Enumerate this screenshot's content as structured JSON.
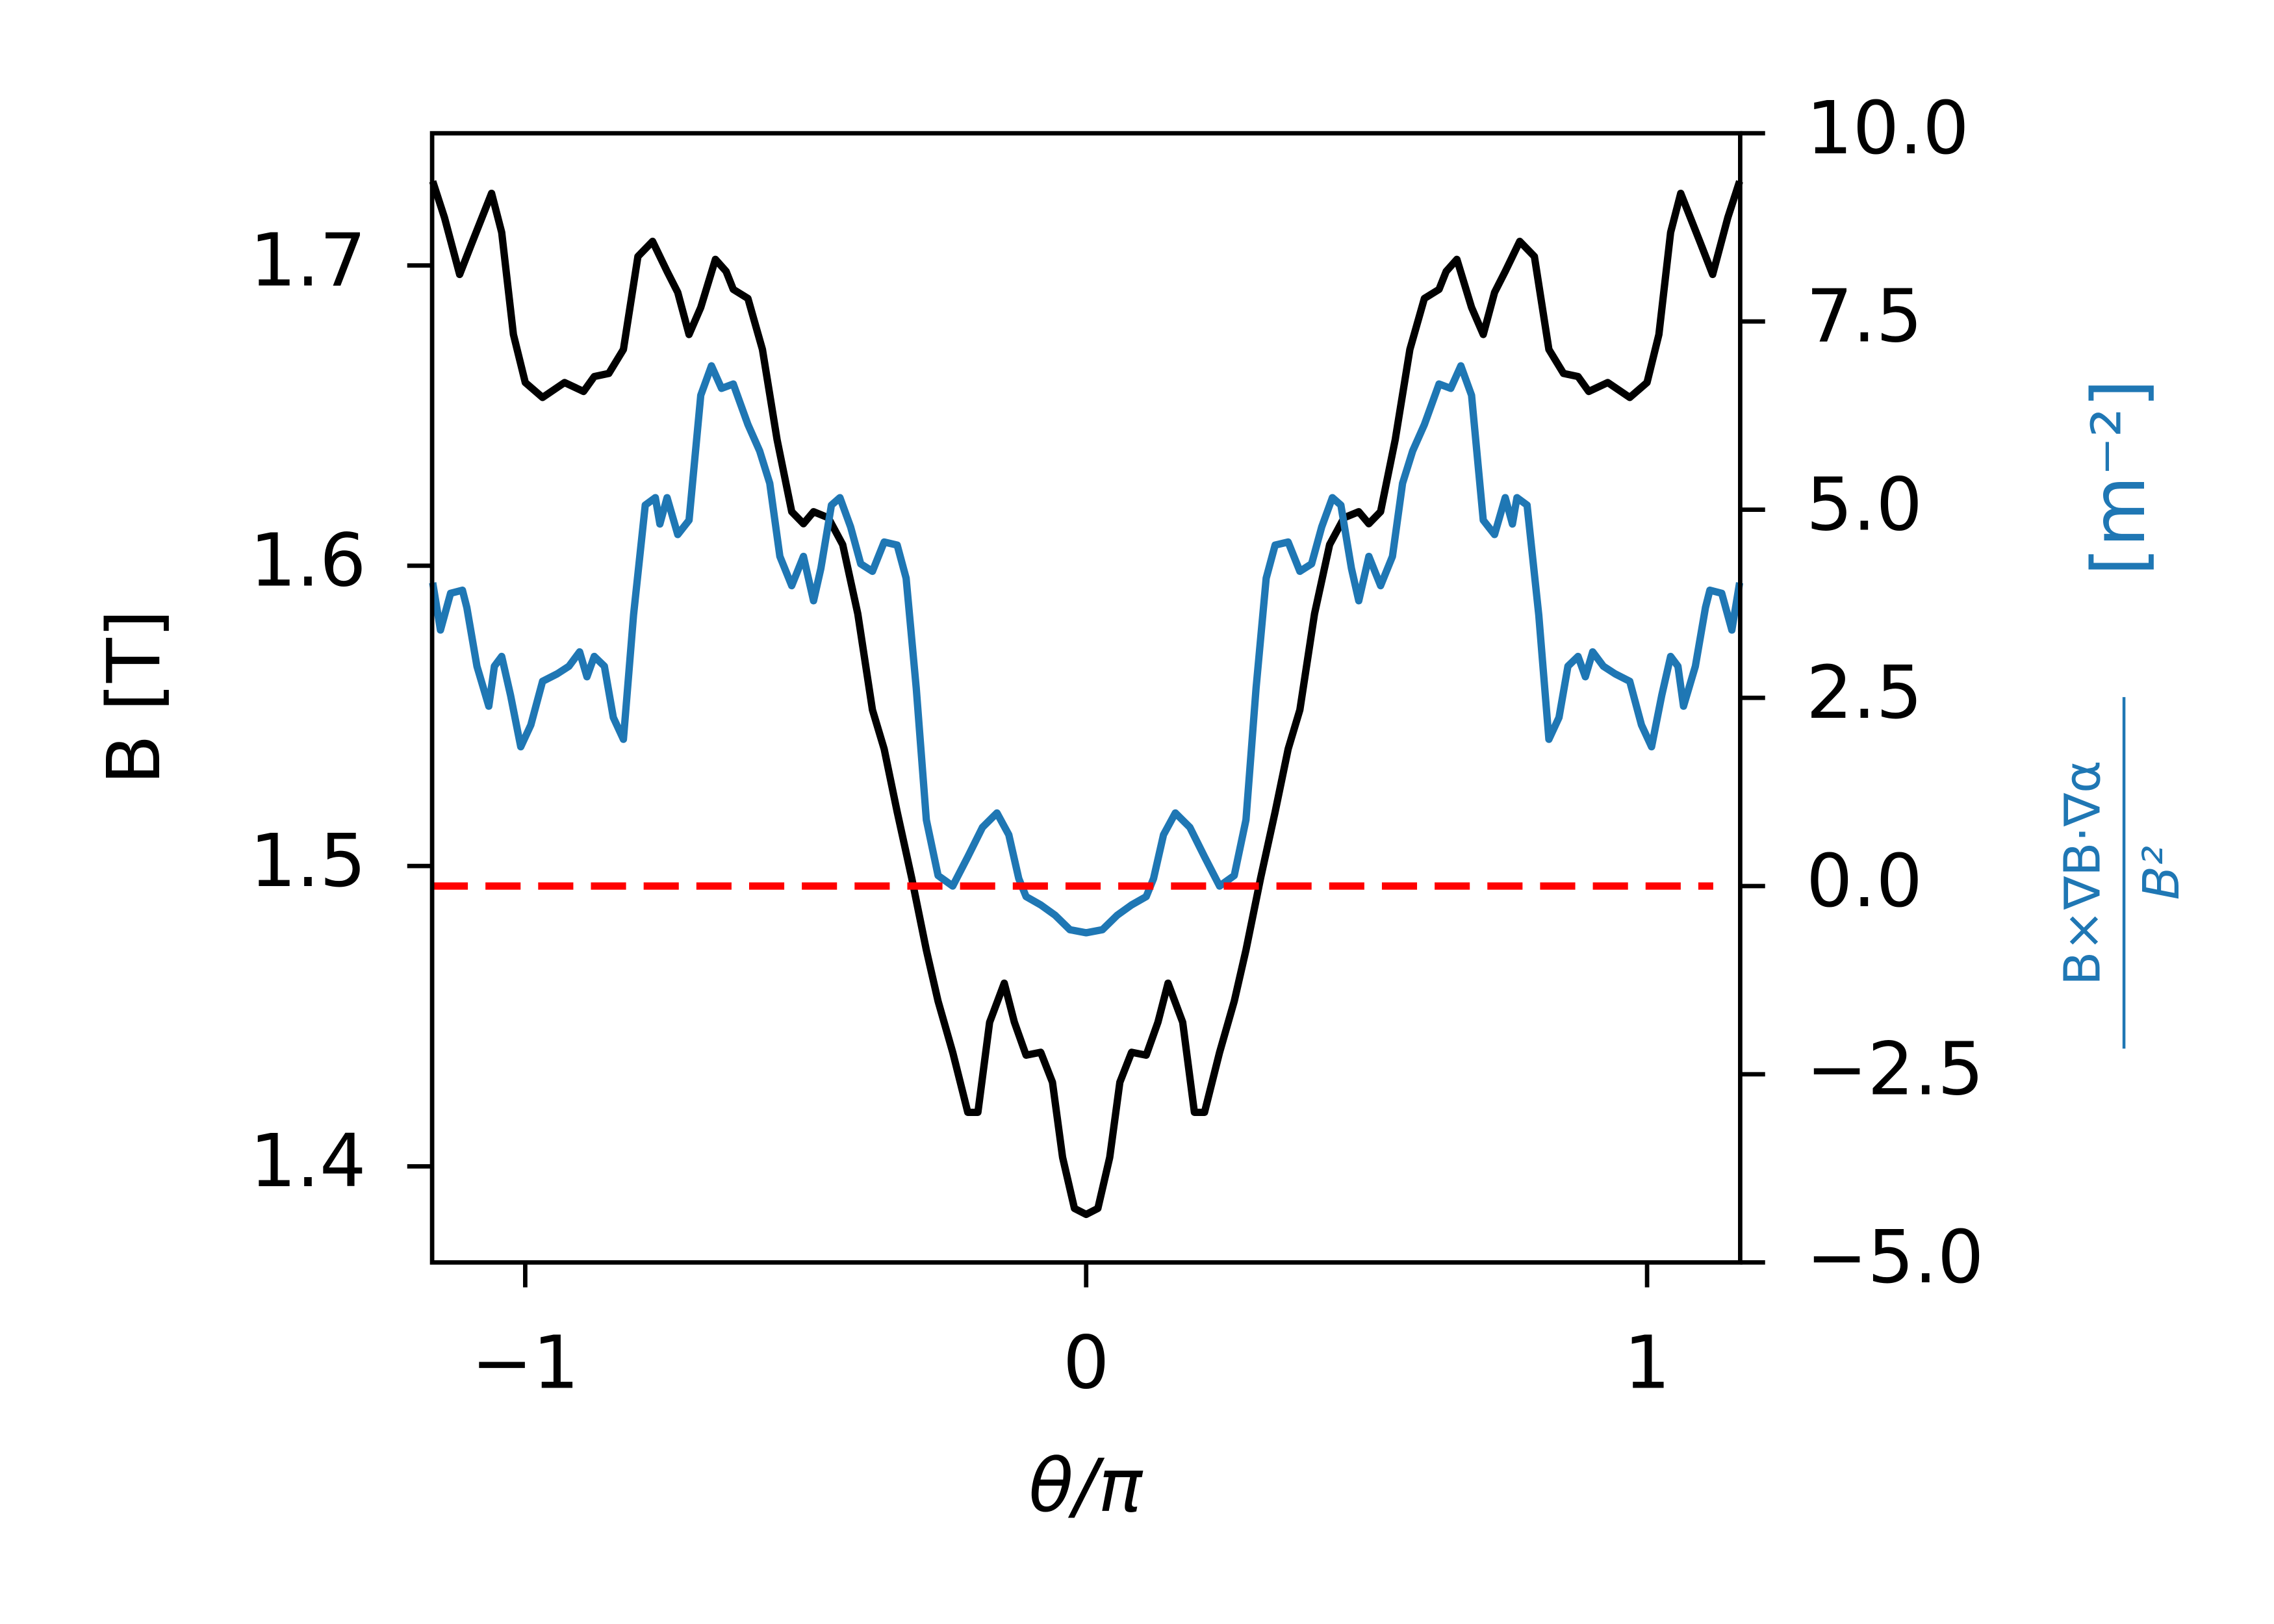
{
  "chart_data": {
    "type": "line",
    "xlabel": "θ/π",
    "ylabel": "B [T]",
    "y2label_numerator": "B×∇B·∇α",
    "y2label_denominator": "B²",
    "y2label_unit": "[m⁻²]",
    "y2label_color": "#1f77b4",
    "xlim": [
      -1.166,
      1.166
    ],
    "xticks": [
      {
        "value": -1,
        "label": "−1"
      },
      0,
      1
    ],
    "ylim": [
      1.368,
      1.744
    ],
    "yticks": [
      1.4,
      1.5,
      1.6,
      1.7
    ],
    "y2lim": [
      -5,
      10
    ],
    "y2ticks": [
      {
        "value": -5,
        "label": "−5.0"
      },
      {
        "value": -2.5,
        "label": "−2.5"
      },
      {
        "value": 0,
        "label": "0.0"
      },
      2.5,
      {
        "value": 5,
        "label": "5.0"
      },
      7.5,
      {
        "value": 10,
        "label": "10.0"
      }
    ],
    "series": [
      {
        "color": "#000000",
        "axis": "y",
        "x": [
          -1.165,
          -1.144,
          -1.117,
          -1.094,
          -1.06,
          -1.042,
          -1.021,
          -1.0,
          -0.969,
          -0.93,
          -0.896,
          -0.877,
          -0.851,
          -0.825,
          -0.799,
          -0.773,
          -0.747,
          -0.728,
          -0.708,
          -0.687,
          -0.661,
          -0.642,
          -0.629,
          -0.603,
          -0.577,
          -0.551,
          -0.525,
          -0.504,
          -0.486,
          -0.46,
          -0.434,
          -0.407,
          -0.381,
          -0.36,
          -0.337,
          -0.311,
          -0.285,
          -0.264,
          -0.238,
          -0.211,
          -0.193,
          -0.172,
          -0.146,
          -0.128,
          -0.107,
          -0.081,
          -0.06,
          -0.042,
          -0.021,
          0,
          0.021,
          0.042,
          0.06,
          0.081,
          0.107,
          0.128,
          0.146,
          0.172,
          0.193,
          0.211,
          0.238,
          0.264,
          0.285,
          0.311,
          0.337,
          0.36,
          0.381,
          0.407,
          0.434,
          0.46,
          0.486,
          0.504,
          0.525,
          0.551,
          0.577,
          0.603,
          0.629,
          0.642,
          0.661,
          0.687,
          0.708,
          0.728,
          0.747,
          0.773,
          0.799,
          0.825,
          0.851,
          0.877,
          0.896,
          0.93,
          0.969,
          1.0,
          1.021,
          1.042,
          1.06,
          1.094,
          1.117,
          1.144,
          1.165
        ],
        "values": [
          1.728,
          1.716,
          1.697,
          1.708,
          1.724,
          1.711,
          1.677,
          1.661,
          1.656,
          1.661,
          1.658,
          1.663,
          1.664,
          1.672,
          1.703,
          1.708,
          1.698,
          1.691,
          1.677,
          1.686,
          1.702,
          1.698,
          1.692,
          1.689,
          1.672,
          1.642,
          1.618,
          1.614,
          1.618,
          1.616,
          1.607,
          1.584,
          1.552,
          1.539,
          1.518,
          1.496,
          1.472,
          1.455,
          1.438,
          1.418,
          1.418,
          1.448,
          1.461,
          1.448,
          1.437,
          1.438,
          1.428,
          1.403,
          1.386,
          1.384,
          1.386,
          1.403,
          1.428,
          1.438,
          1.437,
          1.448,
          1.461,
          1.448,
          1.418,
          1.418,
          1.438,
          1.455,
          1.472,
          1.496,
          1.518,
          1.539,
          1.552,
          1.584,
          1.607,
          1.616,
          1.618,
          1.614,
          1.618,
          1.642,
          1.672,
          1.689,
          1.692,
          1.698,
          1.702,
          1.686,
          1.677,
          1.691,
          1.698,
          1.708,
          1.703,
          1.672,
          1.664,
          1.663,
          1.658,
          1.661,
          1.656,
          1.661,
          1.677,
          1.711,
          1.724,
          1.708,
          1.697,
          1.716,
          1.728
        ]
      },
      {
        "color": "#1f77b4",
        "axis": "y2",
        "x": [
          -1.165,
          -1.151,
          -1.133,
          -1.112,
          -1.104,
          -1.086,
          -1.065,
          -1.055,
          -1.042,
          -1.026,
          -1.008,
          -0.99,
          -0.969,
          -0.943,
          -0.922,
          -0.903,
          -0.89,
          -0.877,
          -0.859,
          -0.843,
          -0.825,
          -0.807,
          -0.786,
          -0.768,
          -0.76,
          -0.747,
          -0.728,
          -0.708,
          -0.687,
          -0.668,
          -0.65,
          -0.629,
          -0.603,
          -0.582,
          -0.564,
          -0.546,
          -0.525,
          -0.504,
          -0.486,
          -0.473,
          -0.454,
          -0.439,
          -0.42,
          -0.402,
          -0.381,
          -0.36,
          -0.337,
          -0.321,
          -0.303,
          -0.285,
          -0.264,
          -0.238,
          -0.211,
          -0.185,
          -0.159,
          -0.138,
          -0.12,
          -0.107,
          -0.081,
          -0.055,
          -0.029,
          0,
          0.029,
          0.055,
          0.081,
          0.107,
          0.12,
          0.138,
          0.159,
          0.185,
          0.211,
          0.238,
          0.264,
          0.285,
          0.303,
          0.321,
          0.337,
          0.36,
          0.381,
          0.402,
          0.42,
          0.439,
          0.454,
          0.473,
          0.486,
          0.504,
          0.525,
          0.546,
          0.564,
          0.582,
          0.603,
          0.629,
          0.65,
          0.668,
          0.687,
          0.708,
          0.728,
          0.747,
          0.76,
          0.768,
          0.786,
          0.807,
          0.825,
          0.843,
          0.859,
          0.877,
          0.89,
          0.903,
          0.922,
          0.943,
          0.969,
          0.99,
          1.008,
          1.026,
          1.042,
          1.055,
          1.065,
          1.086,
          1.104,
          1.112,
          1.133,
          1.151,
          1.165
        ],
        "values": [
          4.03,
          3.4,
          3.89,
          3.93,
          3.7,
          2.92,
          2.39,
          2.92,
          3.05,
          2.53,
          1.85,
          2.14,
          2.72,
          2.82,
          2.92,
          3.11,
          2.78,
          3.05,
          2.92,
          2.24,
          1.95,
          3.6,
          5.06,
          5.16,
          4.81,
          5.16,
          4.67,
          4.86,
          6.52,
          6.91,
          6.61,
          6.67,
          6.13,
          5.78,
          5.35,
          4.38,
          3.99,
          4.38,
          3.79,
          4.22,
          5.06,
          5.16,
          4.77,
          4.28,
          4.18,
          4.57,
          4.53,
          4.09,
          2.63,
          0.88,
          0.14,
          0,
          0.39,
          0.78,
          0.97,
          0.68,
          0.1,
          -0.14,
          -0.25,
          -0.39,
          -0.58,
          -0.62,
          -0.58,
          -0.39,
          -0.25,
          -0.14,
          0.1,
          0.68,
          0.97,
          0.78,
          0.39,
          0,
          0.14,
          0.88,
          2.63,
          4.09,
          4.53,
          4.57,
          4.18,
          4.28,
          4.77,
          5.16,
          5.06,
          4.22,
          3.79,
          4.38,
          3.99,
          4.38,
          5.35,
          5.78,
          6.13,
          6.67,
          6.61,
          6.91,
          6.52,
          4.86,
          4.67,
          5.16,
          4.81,
          5.16,
          5.06,
          3.6,
          1.95,
          2.24,
          2.92,
          3.05,
          2.78,
          3.11,
          2.92,
          2.82,
          2.72,
          2.14,
          1.85,
          2.53,
          3.05,
          2.92,
          2.39,
          2.92,
          3.7,
          3.93,
          3.89,
          3.4,
          4.03
        ]
      },
      {
        "color": "#ff0000",
        "axis": "y2",
        "dashed": true,
        "x": [
          -1.165,
          1.118
        ],
        "values": [
          0,
          0
        ]
      }
    ]
  }
}
